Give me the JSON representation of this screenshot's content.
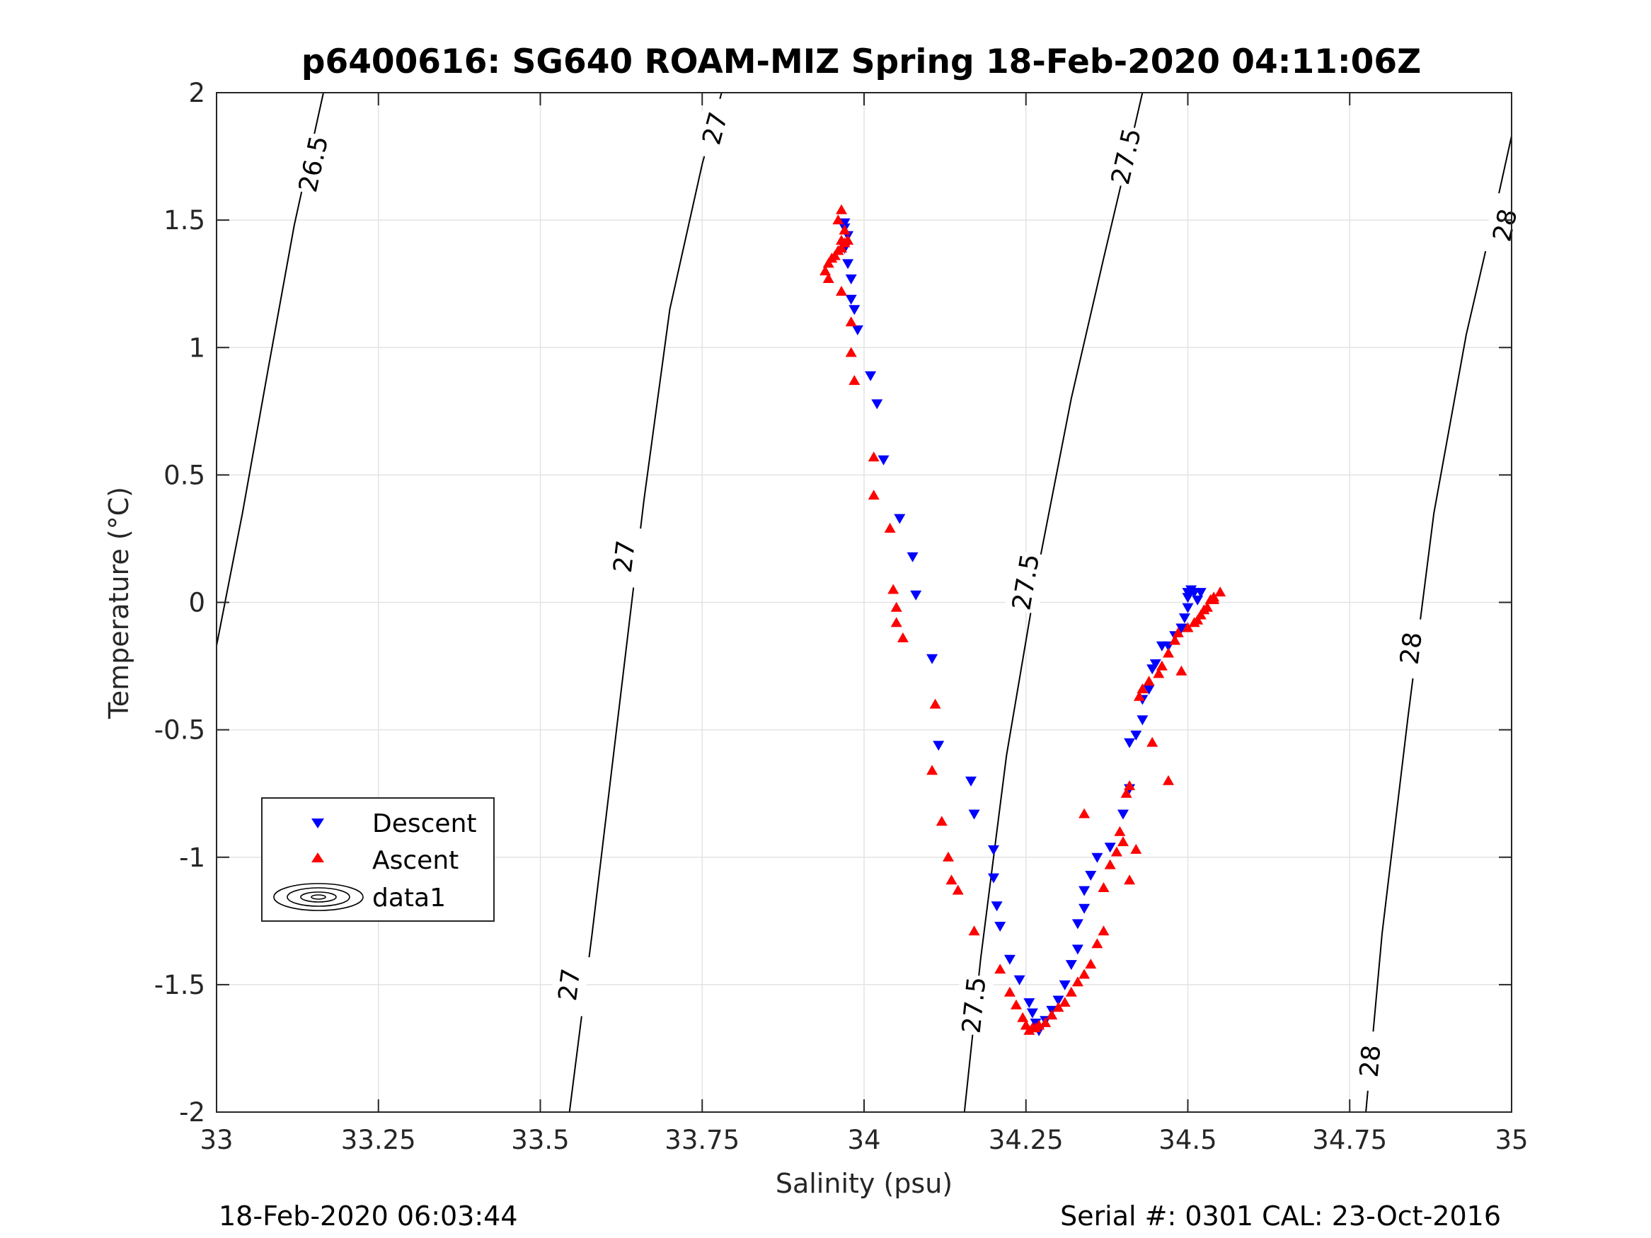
{
  "chart_data": {
    "type": "scatter",
    "title": "p6400616: SG640 ROAM-MIZ Spring 18-Feb-2020 04:11:06Z",
    "xlabel": "Salinity (psu)",
    "ylabel": "Temperature (°C)",
    "xlim": [
      33,
      35
    ],
    "ylim": [
      -2,
      2
    ],
    "xticks": [
      33,
      33.25,
      33.5,
      33.75,
      34,
      34.25,
      34.5,
      34.75,
      35
    ],
    "xtick_labels": [
      "33",
      "33.25",
      "33.5",
      "33.75",
      "34",
      "34.25",
      "34.5",
      "34.75",
      "35"
    ],
    "yticks": [
      -2,
      -1.5,
      -1,
      -0.5,
      0,
      0.5,
      1,
      1.5,
      2
    ],
    "ytick_labels": [
      "-2",
      "-1.5",
      "-1",
      "-0.5",
      "0",
      "0.5",
      "1",
      "1.5",
      "2"
    ],
    "grid": true,
    "legend_position": "lower-left",
    "footer_left": "18-Feb-2020 06:03:44",
    "footer_right": "Serial #: 0301  CAL: 23-Oct-2016",
    "contours": [
      {
        "label": "26.5",
        "points": [
          [
            33.0,
            -0.17
          ],
          [
            33.04,
            0.35
          ],
          [
            33.08,
            0.92
          ],
          [
            33.12,
            1.48
          ],
          [
            33.165,
            2.0
          ]
        ],
        "label_at": [
          [
            33.15,
            1.72
          ]
        ]
      },
      {
        "label": "27",
        "points": [
          [
            33.545,
            -2.0
          ],
          [
            33.58,
            -1.3
          ],
          [
            33.62,
            -0.45
          ],
          [
            33.66,
            0.4
          ],
          [
            33.7,
            1.15
          ],
          [
            33.75,
            1.72
          ],
          [
            33.78,
            2.0
          ]
        ],
        "label_at": [
          [
            33.545,
            -1.5
          ],
          [
            33.63,
            0.18
          ],
          [
            33.77,
            1.86
          ]
        ]
      },
      {
        "label": "27.5",
        "points": [
          [
            34.155,
            -2.0
          ],
          [
            34.18,
            -1.4
          ],
          [
            34.22,
            -0.6
          ],
          [
            34.27,
            0.15
          ],
          [
            34.32,
            0.8
          ],
          [
            34.37,
            1.35
          ],
          [
            34.41,
            1.78
          ],
          [
            34.43,
            2.0
          ]
        ],
        "label_at": [
          [
            34.17,
            -1.58
          ],
          [
            34.25,
            0.08
          ],
          [
            34.405,
            1.75
          ]
        ]
      },
      {
        "label": "28",
        "points": [
          [
            34.775,
            -2.0
          ],
          [
            34.8,
            -1.3
          ],
          [
            34.84,
            -0.45
          ],
          [
            34.88,
            0.35
          ],
          [
            34.93,
            1.05
          ],
          [
            34.98,
            1.6
          ],
          [
            35.0,
            1.83
          ]
        ],
        "label_at": [
          [
            34.782,
            -1.8
          ],
          [
            34.845,
            -0.18
          ],
          [
            34.99,
            1.48
          ]
        ]
      }
    ],
    "series": [
      {
        "name": "Descent",
        "marker": "triangle-down",
        "color": "#0000ff",
        "points": [
          [
            33.97,
            1.49
          ],
          [
            33.97,
            1.47
          ],
          [
            33.975,
            1.44
          ],
          [
            33.97,
            1.39
          ],
          [
            33.975,
            1.33
          ],
          [
            33.98,
            1.27
          ],
          [
            33.98,
            1.19
          ],
          [
            33.985,
            1.15
          ],
          [
            33.99,
            1.07
          ],
          [
            34.01,
            0.89
          ],
          [
            34.02,
            0.78
          ],
          [
            34.03,
            0.56
          ],
          [
            34.055,
            0.33
          ],
          [
            34.075,
            0.18
          ],
          [
            34.08,
            0.03
          ],
          [
            34.105,
            -0.22
          ],
          [
            34.115,
            -0.56
          ],
          [
            34.165,
            -0.7
          ],
          [
            34.17,
            -0.83
          ],
          [
            34.2,
            -0.97
          ],
          [
            34.2,
            -1.08
          ],
          [
            34.205,
            -1.19
          ],
          [
            34.21,
            -1.27
          ],
          [
            34.225,
            -1.4
          ],
          [
            34.24,
            -1.48
          ],
          [
            34.255,
            -1.57
          ],
          [
            34.26,
            -1.61
          ],
          [
            34.265,
            -1.65
          ],
          [
            34.27,
            -1.68
          ],
          [
            34.28,
            -1.64
          ],
          [
            34.29,
            -1.6
          ],
          [
            34.3,
            -1.56
          ],
          [
            34.31,
            -1.5
          ],
          [
            34.32,
            -1.42
          ],
          [
            34.33,
            -1.36
          ],
          [
            34.33,
            -1.26
          ],
          [
            34.34,
            -1.2
          ],
          [
            34.34,
            -1.13
          ],
          [
            34.35,
            -1.07
          ],
          [
            34.36,
            -1.0
          ],
          [
            34.38,
            -0.96
          ],
          [
            34.4,
            -0.83
          ],
          [
            34.41,
            -0.73
          ],
          [
            34.41,
            -0.55
          ],
          [
            34.42,
            -0.52
          ],
          [
            34.43,
            -0.46
          ],
          [
            34.43,
            -0.38
          ],
          [
            34.44,
            -0.34
          ],
          [
            34.445,
            -0.26
          ],
          [
            34.45,
            -0.24
          ],
          [
            34.46,
            -0.17
          ],
          [
            34.47,
            -0.17
          ],
          [
            34.48,
            -0.13
          ],
          [
            34.49,
            -0.1
          ],
          [
            34.495,
            -0.06
          ],
          [
            34.5,
            -0.02
          ],
          [
            34.5,
            0.02
          ],
          [
            34.5,
            0.04
          ],
          [
            34.505,
            0.05
          ],
          [
            34.51,
            0.04
          ],
          [
            34.52,
            0.04
          ],
          [
            34.515,
            0.01
          ]
        ]
      },
      {
        "name": "Ascent",
        "marker": "triangle-up",
        "color": "#ff0000",
        "points": [
          [
            33.965,
            1.54
          ],
          [
            33.96,
            1.5
          ],
          [
            33.97,
            1.46
          ],
          [
            33.965,
            1.42
          ],
          [
            33.96,
            1.38
          ],
          [
            33.955,
            1.36
          ],
          [
            33.95,
            1.35
          ],
          [
            33.945,
            1.33
          ],
          [
            33.94,
            1.3
          ],
          [
            33.945,
            1.27
          ],
          [
            33.965,
            1.39
          ],
          [
            33.97,
            1.41
          ],
          [
            33.975,
            1.42
          ],
          [
            33.965,
            1.22
          ],
          [
            33.98,
            1.1
          ],
          [
            33.98,
            0.98
          ],
          [
            33.985,
            0.87
          ],
          [
            34.015,
            0.57
          ],
          [
            34.015,
            0.42
          ],
          [
            34.04,
            0.29
          ],
          [
            34.045,
            0.05
          ],
          [
            34.05,
            -0.02
          ],
          [
            34.05,
            -0.08
          ],
          [
            34.06,
            -0.14
          ],
          [
            34.11,
            -0.4
          ],
          [
            34.105,
            -0.66
          ],
          [
            34.12,
            -0.86
          ],
          [
            34.13,
            -1.0
          ],
          [
            34.135,
            -1.09
          ],
          [
            34.145,
            -1.13
          ],
          [
            34.17,
            -1.29
          ],
          [
            34.21,
            -1.44
          ],
          [
            34.225,
            -1.53
          ],
          [
            34.235,
            -1.58
          ],
          [
            34.245,
            -1.63
          ],
          [
            34.25,
            -1.66
          ],
          [
            34.255,
            -1.68
          ],
          [
            34.26,
            -1.67
          ],
          [
            34.265,
            -1.67
          ],
          [
            34.27,
            -1.66
          ],
          [
            34.28,
            -1.65
          ],
          [
            34.29,
            -1.62
          ],
          [
            34.3,
            -1.59
          ],
          [
            34.31,
            -1.57
          ],
          [
            34.32,
            -1.53
          ],
          [
            34.33,
            -1.49
          ],
          [
            34.34,
            -1.46
          ],
          [
            34.35,
            -1.42
          ],
          [
            34.36,
            -1.34
          ],
          [
            34.37,
            -1.29
          ],
          [
            34.34,
            -0.83
          ],
          [
            34.37,
            -1.12
          ],
          [
            34.38,
            -1.03
          ],
          [
            34.39,
            -0.98
          ],
          [
            34.395,
            -0.9
          ],
          [
            34.4,
            -0.94
          ],
          [
            34.41,
            -1.09
          ],
          [
            34.42,
            -0.97
          ],
          [
            34.405,
            -0.75
          ],
          [
            34.41,
            -0.72
          ],
          [
            34.425,
            -0.37
          ],
          [
            34.43,
            -0.34
          ],
          [
            34.44,
            -0.31
          ],
          [
            34.445,
            -0.55
          ],
          [
            34.455,
            -0.28
          ],
          [
            34.46,
            -0.25
          ],
          [
            34.47,
            -0.2
          ],
          [
            34.48,
            -0.15
          ],
          [
            34.485,
            -0.12
          ],
          [
            34.47,
            -0.7
          ],
          [
            34.49,
            -0.27
          ],
          [
            34.5,
            -0.1
          ],
          [
            34.51,
            -0.08
          ],
          [
            34.515,
            -0.07
          ],
          [
            34.52,
            -0.05
          ],
          [
            34.525,
            -0.03
          ],
          [
            34.53,
            -0.02
          ],
          [
            34.535,
            0.01
          ],
          [
            34.54,
            0.02
          ],
          [
            34.55,
            0.04
          ],
          [
            34.54,
            0.01
          ]
        ]
      }
    ],
    "legend": [
      {
        "label": "Descent",
        "marker": "triangle-down",
        "color": "#0000ff"
      },
      {
        "label": "Ascent",
        "marker": "triangle-up",
        "color": "#ff0000"
      },
      {
        "label": "data1",
        "marker": "contour-ellipses",
        "color": "#000000"
      }
    ]
  }
}
